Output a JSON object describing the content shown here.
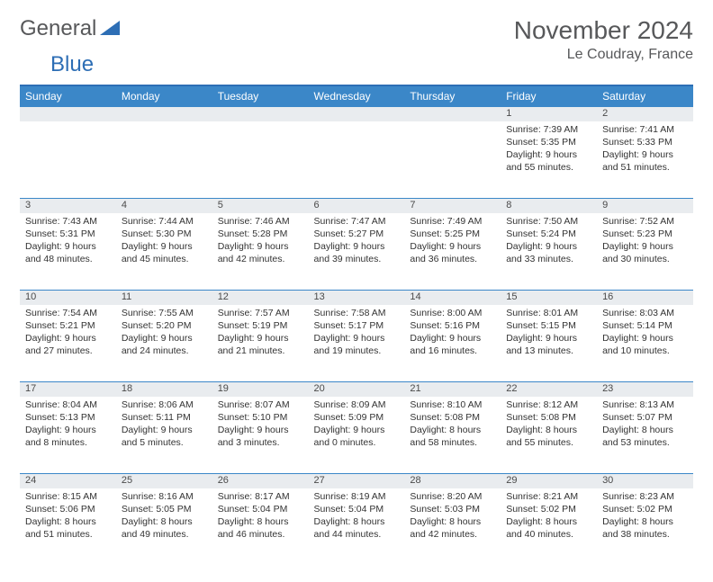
{
  "logo": {
    "text1": "General",
    "text2": "Blue"
  },
  "title": "November 2024",
  "location": "Le Coudray, France",
  "colors": {
    "header_bg": "#3b87c8",
    "header_border": "#2d6eb5",
    "daynum_bg": "#e9ecef",
    "text": "#57585a"
  },
  "weekdays": [
    "Sunday",
    "Monday",
    "Tuesday",
    "Wednesday",
    "Thursday",
    "Friday",
    "Saturday"
  ],
  "weeks": [
    [
      null,
      null,
      null,
      null,
      null,
      {
        "n": "1",
        "sr": "7:39 AM",
        "ss": "5:35 PM",
        "dl": "9 hours and 55 minutes."
      },
      {
        "n": "2",
        "sr": "7:41 AM",
        "ss": "5:33 PM",
        "dl": "9 hours and 51 minutes."
      }
    ],
    [
      {
        "n": "3",
        "sr": "7:43 AM",
        "ss": "5:31 PM",
        "dl": "9 hours and 48 minutes."
      },
      {
        "n": "4",
        "sr": "7:44 AM",
        "ss": "5:30 PM",
        "dl": "9 hours and 45 minutes."
      },
      {
        "n": "5",
        "sr": "7:46 AM",
        "ss": "5:28 PM",
        "dl": "9 hours and 42 minutes."
      },
      {
        "n": "6",
        "sr": "7:47 AM",
        "ss": "5:27 PM",
        "dl": "9 hours and 39 minutes."
      },
      {
        "n": "7",
        "sr": "7:49 AM",
        "ss": "5:25 PM",
        "dl": "9 hours and 36 minutes."
      },
      {
        "n": "8",
        "sr": "7:50 AM",
        "ss": "5:24 PM",
        "dl": "9 hours and 33 minutes."
      },
      {
        "n": "9",
        "sr": "7:52 AM",
        "ss": "5:23 PM",
        "dl": "9 hours and 30 minutes."
      }
    ],
    [
      {
        "n": "10",
        "sr": "7:54 AM",
        "ss": "5:21 PM",
        "dl": "9 hours and 27 minutes."
      },
      {
        "n": "11",
        "sr": "7:55 AM",
        "ss": "5:20 PM",
        "dl": "9 hours and 24 minutes."
      },
      {
        "n": "12",
        "sr": "7:57 AM",
        "ss": "5:19 PM",
        "dl": "9 hours and 21 minutes."
      },
      {
        "n": "13",
        "sr": "7:58 AM",
        "ss": "5:17 PM",
        "dl": "9 hours and 19 minutes."
      },
      {
        "n": "14",
        "sr": "8:00 AM",
        "ss": "5:16 PM",
        "dl": "9 hours and 16 minutes."
      },
      {
        "n": "15",
        "sr": "8:01 AM",
        "ss": "5:15 PM",
        "dl": "9 hours and 13 minutes."
      },
      {
        "n": "16",
        "sr": "8:03 AM",
        "ss": "5:14 PM",
        "dl": "9 hours and 10 minutes."
      }
    ],
    [
      {
        "n": "17",
        "sr": "8:04 AM",
        "ss": "5:13 PM",
        "dl": "9 hours and 8 minutes."
      },
      {
        "n": "18",
        "sr": "8:06 AM",
        "ss": "5:11 PM",
        "dl": "9 hours and 5 minutes."
      },
      {
        "n": "19",
        "sr": "8:07 AM",
        "ss": "5:10 PM",
        "dl": "9 hours and 3 minutes."
      },
      {
        "n": "20",
        "sr": "8:09 AM",
        "ss": "5:09 PM",
        "dl": "9 hours and 0 minutes."
      },
      {
        "n": "21",
        "sr": "8:10 AM",
        "ss": "5:08 PM",
        "dl": "8 hours and 58 minutes."
      },
      {
        "n": "22",
        "sr": "8:12 AM",
        "ss": "5:08 PM",
        "dl": "8 hours and 55 minutes."
      },
      {
        "n": "23",
        "sr": "8:13 AM",
        "ss": "5:07 PM",
        "dl": "8 hours and 53 minutes."
      }
    ],
    [
      {
        "n": "24",
        "sr": "8:15 AM",
        "ss": "5:06 PM",
        "dl": "8 hours and 51 minutes."
      },
      {
        "n": "25",
        "sr": "8:16 AM",
        "ss": "5:05 PM",
        "dl": "8 hours and 49 minutes."
      },
      {
        "n": "26",
        "sr": "8:17 AM",
        "ss": "5:04 PM",
        "dl": "8 hours and 46 minutes."
      },
      {
        "n": "27",
        "sr": "8:19 AM",
        "ss": "5:04 PM",
        "dl": "8 hours and 44 minutes."
      },
      {
        "n": "28",
        "sr": "8:20 AM",
        "ss": "5:03 PM",
        "dl": "8 hours and 42 minutes."
      },
      {
        "n": "29",
        "sr": "8:21 AM",
        "ss": "5:02 PM",
        "dl": "8 hours and 40 minutes."
      },
      {
        "n": "30",
        "sr": "8:23 AM",
        "ss": "5:02 PM",
        "dl": "8 hours and 38 minutes."
      }
    ]
  ],
  "labels": {
    "sunrise": "Sunrise: ",
    "sunset": "Sunset: ",
    "daylight": "Daylight: "
  }
}
